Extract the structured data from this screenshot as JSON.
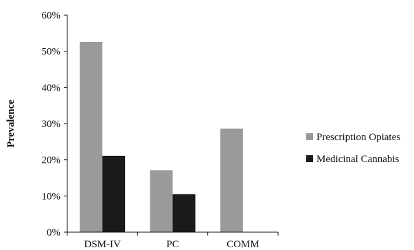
{
  "chart_data": {
    "type": "bar",
    "categories": [
      "DSM-IV",
      "PC",
      "COMM"
    ],
    "series": [
      {
        "name": "Prescription Opiates",
        "values": [
          52.6,
          17.1,
          28.6
        ],
        "color": "#9a9a9a"
      },
      {
        "name": "Medicinal Cannabis",
        "values": [
          21.1,
          10.5,
          null
        ],
        "color": "#1a1a1a"
      }
    ],
    "ylabel": "Prevalence",
    "ylim": [
      0,
      60
    ],
    "yticks": [
      "0%",
      "10%",
      "20%",
      "30%",
      "40%",
      "50%",
      "60%"
    ],
    "grid": false,
    "legend_position": "right"
  }
}
